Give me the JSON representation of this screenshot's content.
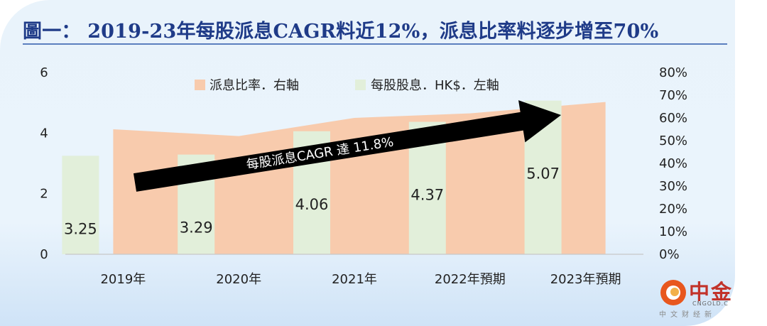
{
  "title": "圖一： 2019-23年每股派息CAGR料近12%，派息比率料逐步增至70%",
  "chart_data": {
    "type": "bar",
    "categories": [
      "2019年",
      "2020年",
      "2021年",
      "2022年預期",
      "2023年預期"
    ],
    "series": [
      {
        "name": "每股股息．HK$．左軸",
        "kind": "bar",
        "axis": "left",
        "values": [
          3.25,
          3.29,
          4.06,
          4.37,
          5.07
        ]
      },
      {
        "name": "派息比率．右軸",
        "kind": "area",
        "axis": "right",
        "values": [
          0.55,
          0.52,
          0.6,
          0.62,
          0.67
        ]
      }
    ],
    "left_axis": {
      "ticks": [
        "0",
        "2",
        "4",
        "6"
      ],
      "ylim": [
        0,
        6
      ]
    },
    "right_axis": {
      "ticks": [
        "0%",
        "10%",
        "20%",
        "30%",
        "40%",
        "50%",
        "60%",
        "70%",
        "80%"
      ],
      "ylim": [
        0,
        0.8
      ]
    },
    "annotation": "每股派息CAGR 達 11.8%",
    "legend_position": "top",
    "colors": {
      "bar": "#e2efda",
      "area": "#f8cbad",
      "arrow": "#000000"
    }
  },
  "logo": {
    "main": "中金",
    "en": "CNGOLD.C",
    "sub": "中文财经新"
  }
}
